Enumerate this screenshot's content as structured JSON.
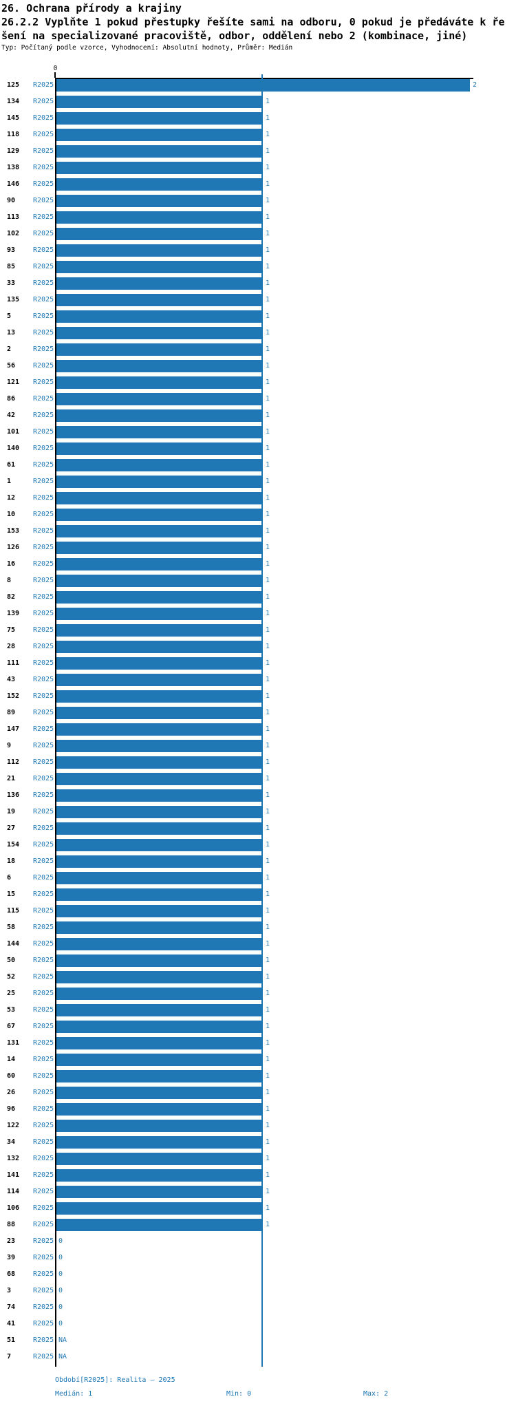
{
  "title": "26. Ochrana přírody a krajiny",
  "question_lines": [
    "26.2.2 Vyplňte 1 pokud přestupky řešíte sami na odboru, 0 pokud je předáváte k ře",
    "šení na specializované pracoviště, odbor, oddělení nebo 2 (kombinace, jiné)"
  ],
  "meta": "Typ: Počítaný podle vzorce, Vyhodnocení: Absolutní hodnoty, Průměr: Medián",
  "colors": {
    "bar": "#1f77b4",
    "blue_text": "#1f77b4",
    "axis": "#000000",
    "background": "#ffffff"
  },
  "chart_data": {
    "type": "bar",
    "orientation": "horizontal",
    "title": "26.2.2 Vyplňte 1 pokud přestupky řešíte sami na odboru, 0 pokud je předáváte k řešení na specializované pracoviště, odbor, oddělení nebo 2 (kombinace, jiné)",
    "series_label": "R2025",
    "xlabel": "",
    "ylabel": "",
    "xlim": [
      0,
      2
    ],
    "x_tick_labels": [
      "0"
    ],
    "grid": false,
    "legend_position": "none",
    "median_line_value": 1,
    "rows": [
      {
        "id": "125",
        "value": 2
      },
      {
        "id": "134",
        "value": 1
      },
      {
        "id": "145",
        "value": 1
      },
      {
        "id": "118",
        "value": 1
      },
      {
        "id": "129",
        "value": 1
      },
      {
        "id": "138",
        "value": 1
      },
      {
        "id": "146",
        "value": 1
      },
      {
        "id": "90",
        "value": 1
      },
      {
        "id": "113",
        "value": 1
      },
      {
        "id": "102",
        "value": 1
      },
      {
        "id": "93",
        "value": 1
      },
      {
        "id": "85",
        "value": 1
      },
      {
        "id": "33",
        "value": 1
      },
      {
        "id": "135",
        "value": 1
      },
      {
        "id": "5",
        "value": 1
      },
      {
        "id": "13",
        "value": 1
      },
      {
        "id": "2",
        "value": 1
      },
      {
        "id": "56",
        "value": 1
      },
      {
        "id": "121",
        "value": 1
      },
      {
        "id": "86",
        "value": 1
      },
      {
        "id": "42",
        "value": 1
      },
      {
        "id": "101",
        "value": 1
      },
      {
        "id": "140",
        "value": 1
      },
      {
        "id": "61",
        "value": 1
      },
      {
        "id": "1",
        "value": 1
      },
      {
        "id": "12",
        "value": 1
      },
      {
        "id": "10",
        "value": 1
      },
      {
        "id": "153",
        "value": 1
      },
      {
        "id": "126",
        "value": 1
      },
      {
        "id": "16",
        "value": 1
      },
      {
        "id": "8",
        "value": 1
      },
      {
        "id": "82",
        "value": 1
      },
      {
        "id": "139",
        "value": 1
      },
      {
        "id": "75",
        "value": 1
      },
      {
        "id": "28",
        "value": 1
      },
      {
        "id": "111",
        "value": 1
      },
      {
        "id": "43",
        "value": 1
      },
      {
        "id": "152",
        "value": 1
      },
      {
        "id": "89",
        "value": 1
      },
      {
        "id": "147",
        "value": 1
      },
      {
        "id": "9",
        "value": 1
      },
      {
        "id": "112",
        "value": 1
      },
      {
        "id": "21",
        "value": 1
      },
      {
        "id": "136",
        "value": 1
      },
      {
        "id": "19",
        "value": 1
      },
      {
        "id": "27",
        "value": 1
      },
      {
        "id": "154",
        "value": 1
      },
      {
        "id": "18",
        "value": 1
      },
      {
        "id": "6",
        "value": 1
      },
      {
        "id": "15",
        "value": 1
      },
      {
        "id": "115",
        "value": 1
      },
      {
        "id": "58",
        "value": 1
      },
      {
        "id": "144",
        "value": 1
      },
      {
        "id": "50",
        "value": 1
      },
      {
        "id": "52",
        "value": 1
      },
      {
        "id": "25",
        "value": 1
      },
      {
        "id": "53",
        "value": 1
      },
      {
        "id": "67",
        "value": 1
      },
      {
        "id": "131",
        "value": 1
      },
      {
        "id": "14",
        "value": 1
      },
      {
        "id": "60",
        "value": 1
      },
      {
        "id": "26",
        "value": 1
      },
      {
        "id": "96",
        "value": 1
      },
      {
        "id": "122",
        "value": 1
      },
      {
        "id": "34",
        "value": 1
      },
      {
        "id": "132",
        "value": 1
      },
      {
        "id": "141",
        "value": 1
      },
      {
        "id": "114",
        "value": 1
      },
      {
        "id": "106",
        "value": 1
      },
      {
        "id": "88",
        "value": 1
      },
      {
        "id": "23",
        "value": 0
      },
      {
        "id": "39",
        "value": 0
      },
      {
        "id": "68",
        "value": 0
      },
      {
        "id": "3",
        "value": 0
      },
      {
        "id": "74",
        "value": 0
      },
      {
        "id": "41",
        "value": 0
      },
      {
        "id": "51",
        "value": "NA"
      },
      {
        "id": "7",
        "value": "NA"
      }
    ]
  },
  "footer": {
    "period": "Období[R2025]: Realita – 2025",
    "median": "Medián: 1",
    "min": "Min: 0",
    "max": "Max: 2"
  }
}
